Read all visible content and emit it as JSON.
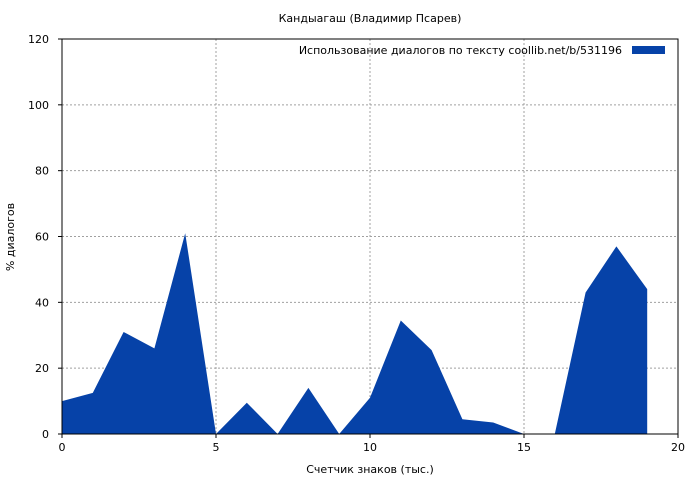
{
  "chart_data": {
    "type": "area",
    "title": "Кандыагаш (Владимир Псарев)",
    "xlabel": "Счетчик знаков (тыс.)",
    "ylabel": "% диалогов",
    "xlim": [
      0,
      20
    ],
    "ylim": [
      0,
      120
    ],
    "x_ticks": [
      0,
      5,
      10,
      15,
      20
    ],
    "y_ticks": [
      0,
      20,
      40,
      60,
      80,
      100,
      120
    ],
    "grid": true,
    "legend_position": "top-right",
    "series": [
      {
        "name": "Использование диалогов по тексту  coollib.net/b/531196",
        "color": "#0642a8",
        "x": [
          0,
          1,
          2,
          3,
          4,
          5,
          6,
          7,
          8,
          9,
          10,
          11,
          12,
          13,
          14,
          15,
          16,
          17,
          18,
          19
        ],
        "values": [
          10,
          12.5,
          31,
          26,
          61,
          0,
          9.5,
          0,
          14,
          0,
          11,
          34.5,
          25.5,
          4.5,
          3.5,
          0,
          0,
          43,
          57,
          44
        ]
      }
    ]
  }
}
